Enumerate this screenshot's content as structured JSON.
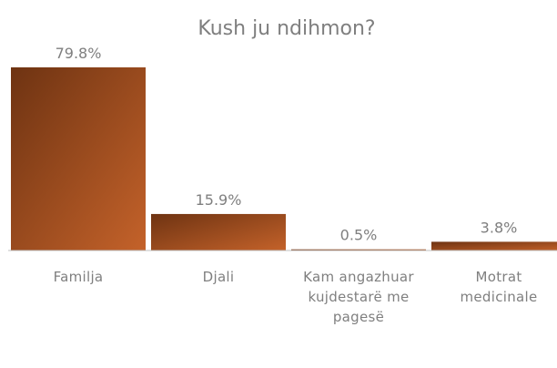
{
  "chart_data": {
    "type": "bar",
    "title": "Kush ju ndihmon?",
    "categories": [
      "Familja",
      "Djali",
      "Kam angazhuar kujdestarë me pagesë",
      "Motrat medicinale"
    ],
    "values": [
      79.8,
      15.9,
      0.5,
      3.8
    ],
    "value_labels": [
      "79.8%",
      "15.9%",
      "0.5%",
      "3.8%"
    ],
    "color": "#c4622a"
  }
}
